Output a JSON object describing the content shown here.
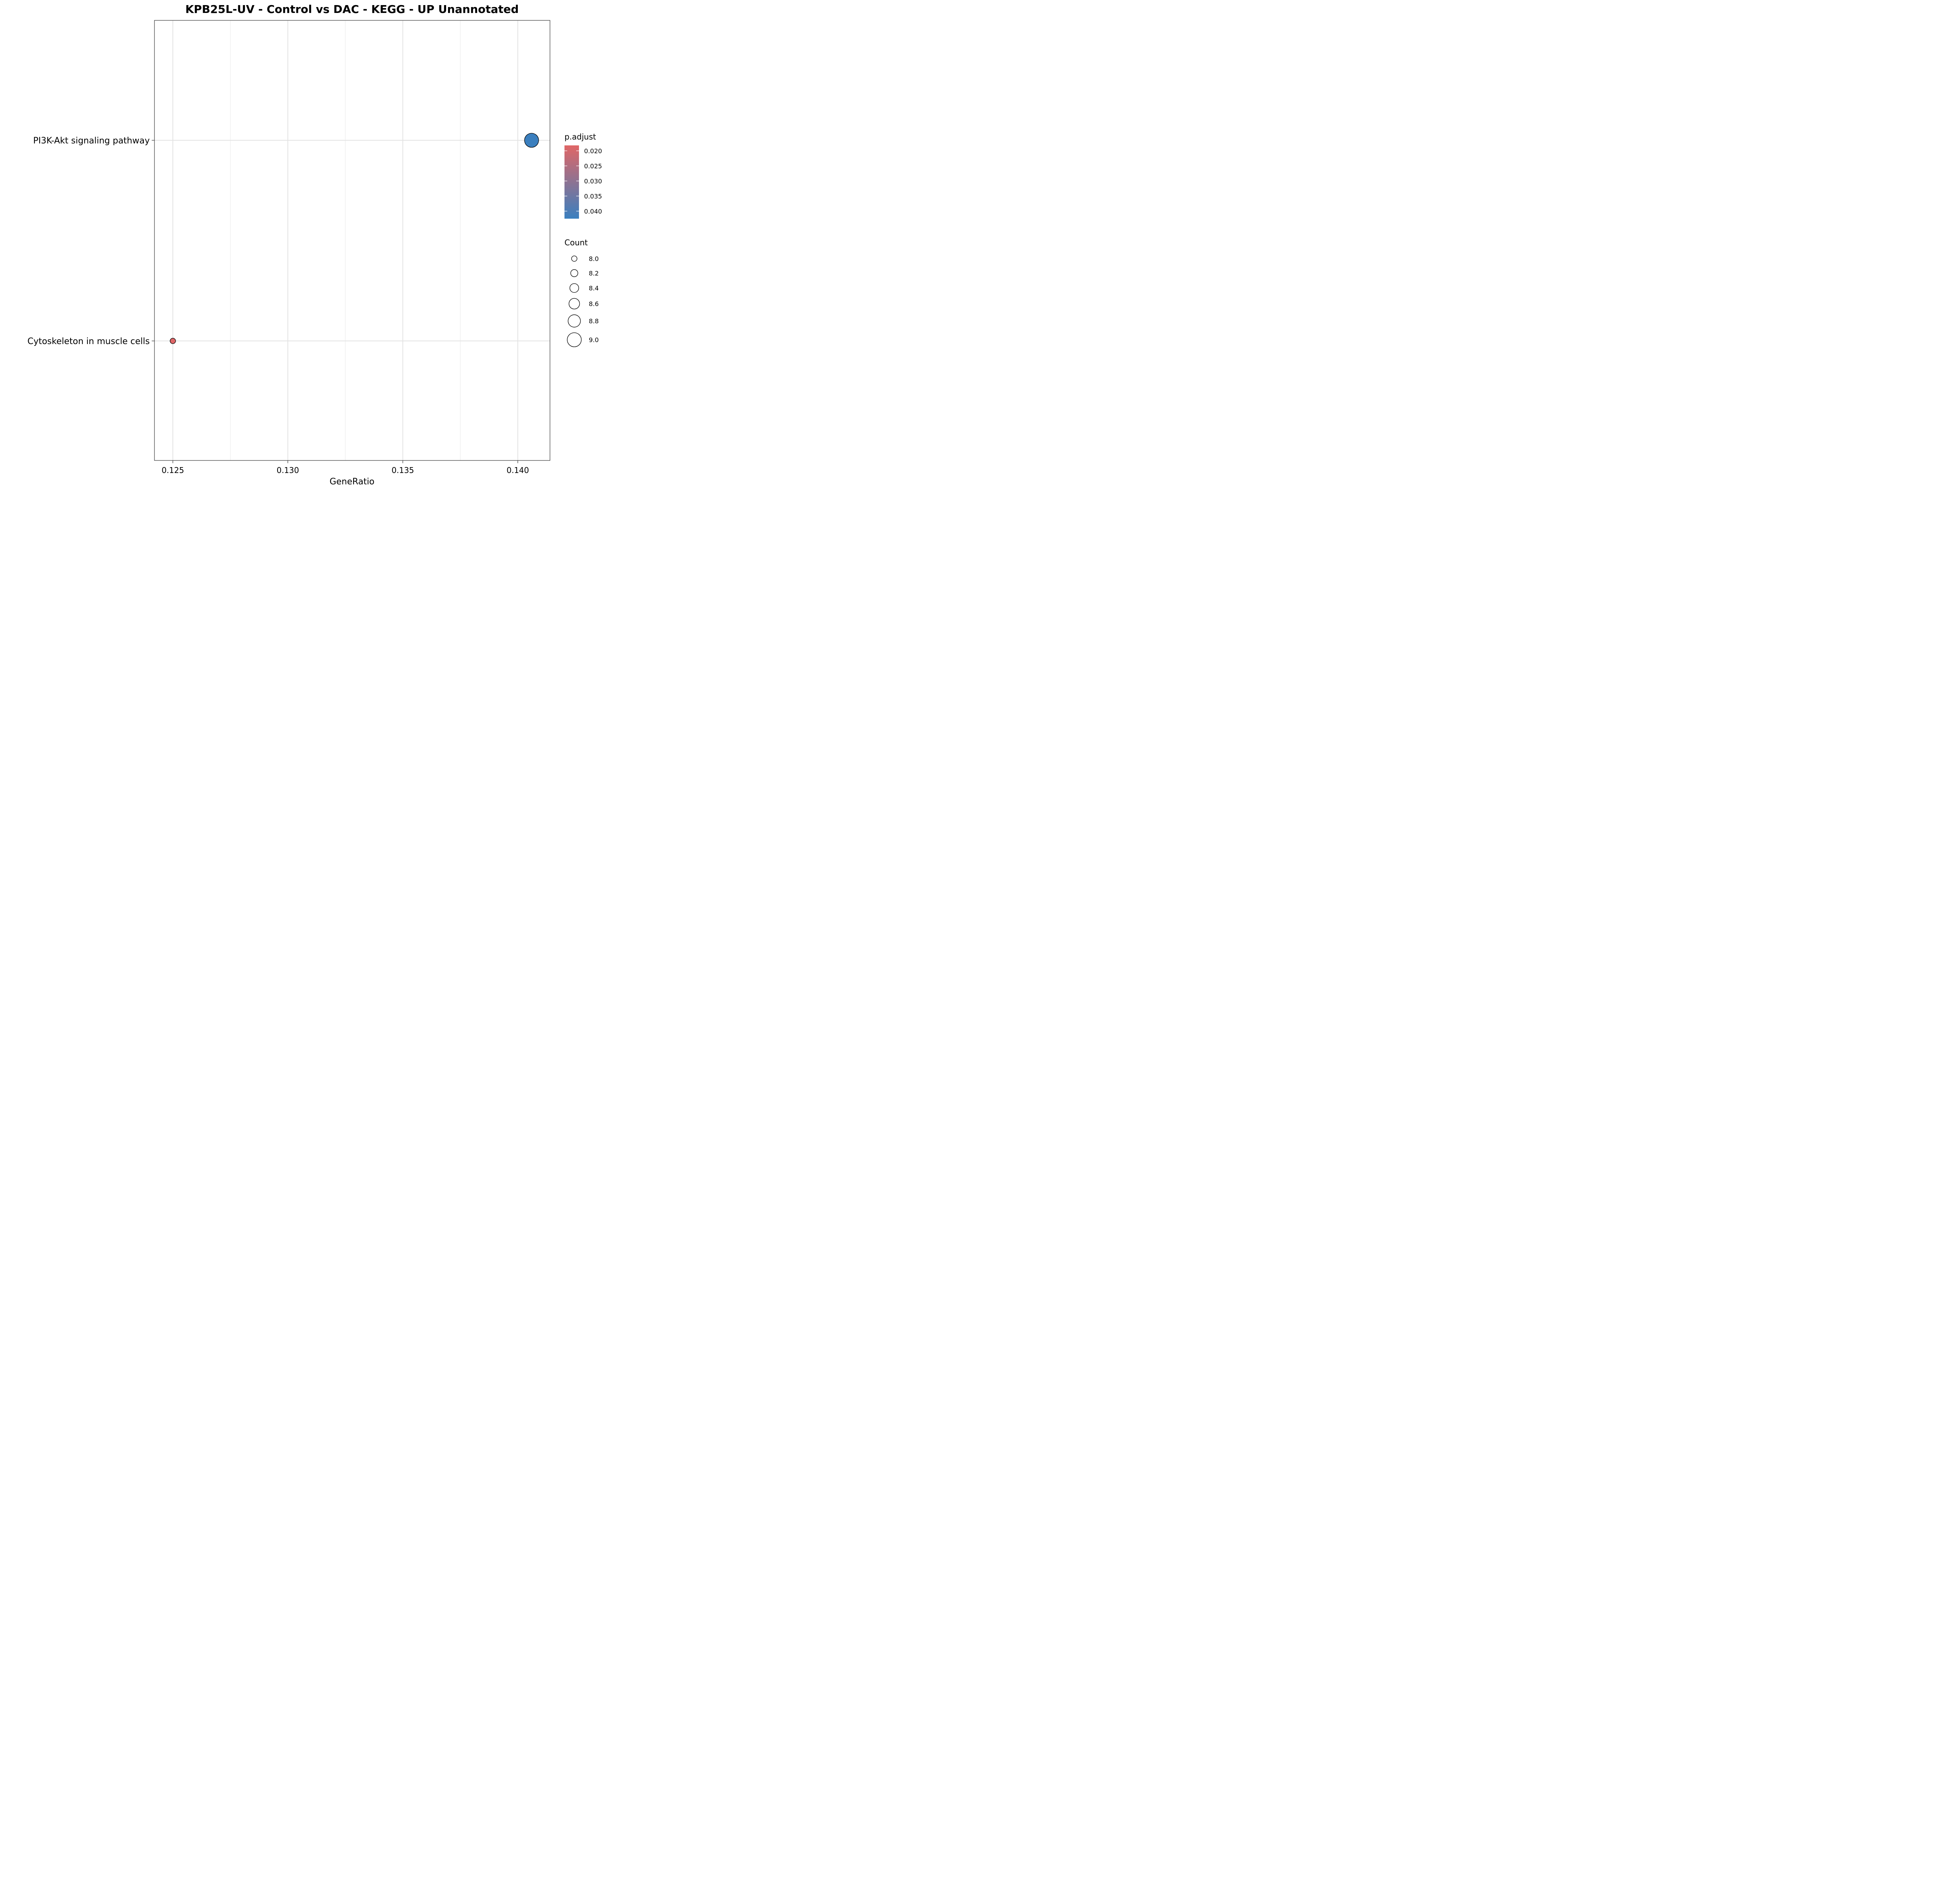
{
  "chart_data": {
    "type": "scatter",
    "title": "KPB25L-UV - Control vs DAC - KEGG - UP Unannotated",
    "xlabel": "GeneRatio",
    "ylabel": "",
    "xlim": [
      0.1242,
      0.1414
    ],
    "x_ticks": [
      "0.125",
      "0.130",
      "0.135",
      "0.140"
    ],
    "categories": [
      "Cytoskeleton in muscle cells",
      "PI3K-Akt signaling pathway"
    ],
    "points": [
      {
        "category": "PI3K-Akt signaling pathway",
        "gene_ratio": 0.1406,
        "p_adjust": 0.0423,
        "count": 9
      },
      {
        "category": "Cytoskeleton in muscle cells",
        "gene_ratio": 0.125,
        "p_adjust": 0.0184,
        "count": 8
      }
    ],
    "grid": true,
    "legend_position": "right",
    "color_legend": {
      "title": "p.adjust",
      "range": [
        0.0182,
        0.0425
      ],
      "low_color": "#e06666",
      "high_color": "#3a7fbf",
      "ticks": [
        "0.020",
        "0.025",
        "0.030",
        "0.035",
        "0.040"
      ]
    },
    "size_legend": {
      "title": "Count",
      "range": [
        8,
        9
      ],
      "entries": [
        "8.0",
        "8.2",
        "8.4",
        "8.6",
        "8.8",
        "9.0"
      ]
    }
  }
}
